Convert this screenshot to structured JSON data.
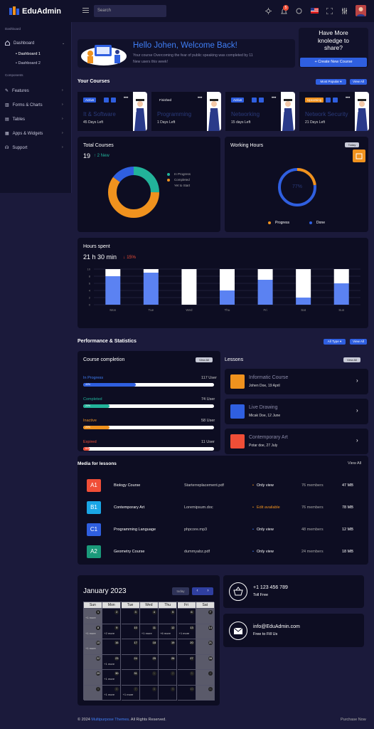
{
  "brand": {
    "name": "EduAdmin"
  },
  "topbar": {
    "search_placeholder": "Search",
    "notif_count": "5"
  },
  "sidebar": {
    "section1": "Dashboard",
    "section2": "Components",
    "dashboard": "Dashboard",
    "dash1": "Dashboard 1",
    "dash2": "Dashboard 2",
    "items": [
      "Features",
      "Forms & Charts",
      "Tables",
      "Apps & Widgets",
      "Support"
    ]
  },
  "welcome": {
    "title": "Hello Johen, Welcome Back!",
    "text1": "Your course Overcoming the fear of public speaking was completed by 11",
    "text2": "New users this week!"
  },
  "knowledge": {
    "line1": "Have More",
    "line2": "knoledge to",
    "line3": "share?",
    "button": "Create New Course"
  },
  "courses": {
    "title": "Your Courses",
    "filter": "Most Popular ▾",
    "view_all": "View All",
    "cards": [
      {
        "badge": "Active",
        "name": "It & Software",
        "left": "45 Days Left"
      },
      {
        "badge": "Finished",
        "name": "Programming",
        "left": "1 Days Left"
      },
      {
        "badge": "Active",
        "name": "Networking",
        "left": "15 days Left"
      },
      {
        "badge": "Upcoming",
        "name": "Network Security",
        "left": "21 Days Left"
      }
    ]
  },
  "total_courses": {
    "title": "Total Courses",
    "count": "19",
    "new": "2 New",
    "legend": [
      "In Progress",
      "Completed",
      "Yet to Start"
    ]
  },
  "working_hours": {
    "title": "Working Hours",
    "toggle": "Today",
    "center": "77%",
    "legend": [
      "Progress",
      "Done"
    ]
  },
  "hours": {
    "title": "Hours spent",
    "value": "21 h 30 min",
    "change": "15%",
    "yticks": [
      "10",
      "8",
      "6",
      "4",
      "2",
      "0"
    ],
    "days": [
      "Mon",
      "Tue",
      "Wed",
      "Thu",
      "Fri",
      "Sat",
      "Sun"
    ]
  },
  "chart_data": [
    {
      "type": "pie",
      "title": "Total Courses",
      "labels": [
        "In Progress",
        "Completed",
        "Yet to Start"
      ],
      "values": [
        25,
        60,
        15
      ],
      "colors": [
        "#22b39a",
        "#f0921e",
        "#2f5fe0"
      ]
    },
    {
      "type": "pie",
      "title": "Working Hours",
      "labels": [
        "Progress",
        "Done"
      ],
      "values": [
        23,
        77
      ],
      "colors": [
        "#f0921e",
        "#2f5fe0"
      ]
    },
    {
      "type": "bar",
      "title": "Hours spent",
      "categories": [
        "Mon",
        "Tue",
        "Wed",
        "Thu",
        "Fri",
        "Sat",
        "Sun"
      ],
      "series": [
        {
          "values": [
            8,
            9,
            0,
            4,
            7,
            2,
            6
          ],
          "color": "#5b82f2"
        },
        {
          "values": [
            2,
            1,
            10,
            6,
            3,
            8,
            4
          ],
          "color": "#ffffff"
        }
      ],
      "ylim": [
        0,
        10
      ]
    }
  ],
  "perf": {
    "title": "Performance & Statistics",
    "filter": "All Type ▾",
    "view_all": "View All"
  },
  "completion": {
    "title": "Course completion",
    "view_all": "View All",
    "rows": [
      {
        "label": "In Progress",
        "users": "117 User",
        "pct": "40%",
        "p": 0.4,
        "color": "#2f5fe0",
        "lc": "#3f7ef5"
      },
      {
        "label": "Completed",
        "users": "74 User",
        "pct": "20%",
        "p": 0.2,
        "color": "#22b39a",
        "lc": "#22b39a"
      },
      {
        "label": "Inactive",
        "users": "58 User",
        "pct": "20%",
        "p": 0.2,
        "color": "#f0921e",
        "lc": "#f0921e"
      },
      {
        "label": "Expired",
        "users": "11 User",
        "pct": "5%",
        "p": 0.05,
        "color": "#f04e37",
        "lc": "#f04e37"
      }
    ]
  },
  "lessons": {
    "title": "Lessons",
    "view_all": "View All",
    "items": [
      {
        "name": "Informatic Course",
        "meta": "Johen Doe, 19 April",
        "color": "#f0921e"
      },
      {
        "name": "Live Drawing",
        "meta": "Micak Doe, 12 June",
        "color": "#2f5fe0"
      },
      {
        "name": "Contemporary Art",
        "meta": "Potar doe, 27 July",
        "color": "#f04e37"
      }
    ]
  },
  "media": {
    "title": "Media for lessons",
    "view_all": "View All",
    "rows": [
      {
        "badge": "A1",
        "bc": "#f04e37",
        "course": "Biology Course",
        "file": "Starterreplacement.pdf",
        "status": "Only view",
        "sc": "#f0921e",
        "members": "76 members",
        "size": "47 MB"
      },
      {
        "badge": "B1",
        "bc": "#1aa6e6",
        "course": "Contemporary Art",
        "file": "Loremipsum.doc",
        "status": "Edit available",
        "sc": "#f0921e",
        "members": "76 members",
        "size": "78 MB"
      },
      {
        "badge": "C1",
        "bc": "#2f5fe0",
        "course": "Programming Language",
        "file": "phpcore.mp3",
        "status": "Only view",
        "sc": "#3f7ef5",
        "members": "48 members",
        "size": "12 MB"
      },
      {
        "badge": "A2",
        "bc": "#1a9a7a",
        "course": "Geometry Course",
        "file": "dummyabz.pdf",
        "status": "Only view",
        "sc": "#3f7ef5",
        "members": "24 members",
        "size": "18 MB"
      }
    ]
  },
  "calendar": {
    "title": "January 2023",
    "today": "today",
    "days": [
      "Sun",
      "Mon",
      "Tue",
      "Wed",
      "Thu",
      "Fri",
      "Sat"
    ],
    "cells": [
      "1",
      "2",
      "3",
      "4",
      "5",
      "6",
      "7",
      "8",
      "9",
      "10",
      "11",
      "12",
      "13",
      "14",
      "15",
      "16",
      "17",
      "18",
      "19",
      "20",
      "21",
      "22",
      "23",
      "24",
      "25",
      "26",
      "27",
      "28",
      "29",
      "30",
      "31",
      "1",
      "2",
      "3",
      "4",
      "5",
      "6",
      "7",
      "8",
      "9",
      "10",
      "11"
    ],
    "more": "+1 more",
    "more2": "+2 more",
    "more6": "+6 more"
  },
  "contact": {
    "phone": "+1 123 456 789",
    "phone_sub": "Toll Free",
    "email": "info@EduAdmin.com",
    "email_sub": "Free to Fill Us"
  },
  "footer": {
    "copy_pre": "© 2024 ",
    "copy_link": "Multipurpose Themes",
    "copy_post": ". All Rights Reserved.",
    "purchase": "Purchase Now"
  }
}
